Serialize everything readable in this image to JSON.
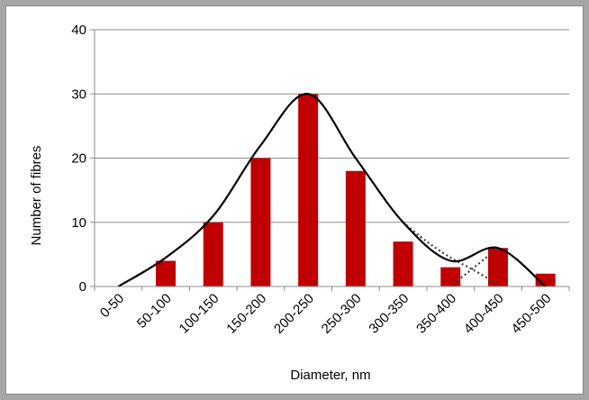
{
  "chart_data": {
    "type": "bar",
    "categories": [
      "0-50",
      "50-100",
      "100-150",
      "150-200",
      "200-250",
      "250-300",
      "300-350",
      "350-400",
      "400-450",
      "450-500"
    ],
    "series": [
      {
        "values": [
          0,
          4,
          10,
          20,
          30,
          18,
          7,
          3,
          6,
          2
        ],
        "color": "#c00000"
      }
    ],
    "fit_curve": {
      "style": "solid",
      "color": "#000000",
      "x": [
        0,
        1,
        2,
        3,
        4,
        5,
        6,
        7,
        8,
        9
      ],
      "y": [
        0,
        4.5,
        11,
        22,
        30,
        20,
        10,
        4,
        6,
        0
      ]
    },
    "dotted_curves": [
      {
        "style": "dotted",
        "color": "#404040",
        "x": [
          6,
          6.5,
          7,
          7.5,
          8
        ],
        "y": [
          10,
          7,
          4.5,
          2.5,
          0.3
        ]
      },
      {
        "style": "dotted",
        "color": "#404040",
        "x": [
          7,
          7.5,
          8
        ],
        "y": [
          0,
          3,
          6
        ]
      }
    ],
    "title": "",
    "xlabel": "Diameter, nm",
    "ylabel": "Number of  fibres",
    "ylim": [
      0,
      40
    ],
    "yticks": [
      0,
      10,
      20,
      30,
      40
    ],
    "grid": true,
    "legend": "none"
  }
}
